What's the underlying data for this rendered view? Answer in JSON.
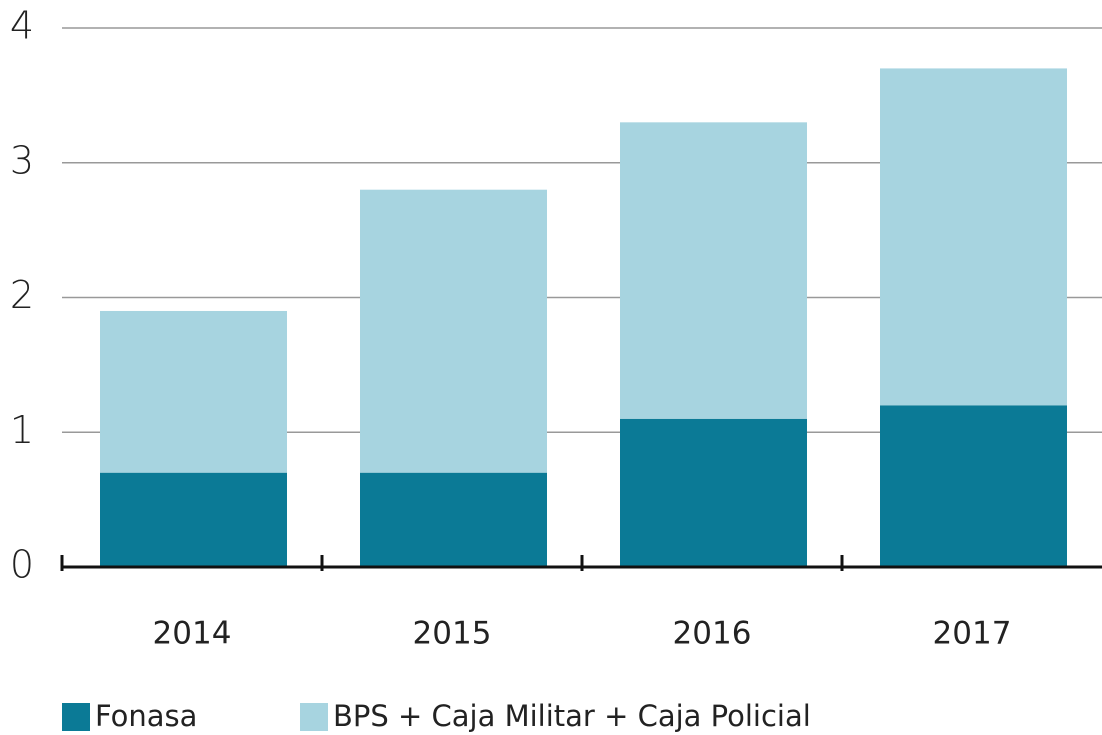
{
  "chart_data": {
    "type": "stacked_bar",
    "categories": [
      "2014",
      "2015",
      "2016",
      "2017"
    ],
    "series": [
      {
        "name": "Fonasa",
        "color": "#0b7a96",
        "values": [
          0.7,
          0.7,
          1.1,
          1.2
        ]
      },
      {
        "name": "BPS + Caja Militar + Caja Policial",
        "color": "#a7d4e0",
        "values": [
          1.2,
          2.1,
          2.2,
          2.5
        ]
      }
    ],
    "ylim": [
      0,
      4
    ],
    "yticks": [
      0,
      1,
      2,
      3,
      4
    ],
    "grid": true
  }
}
